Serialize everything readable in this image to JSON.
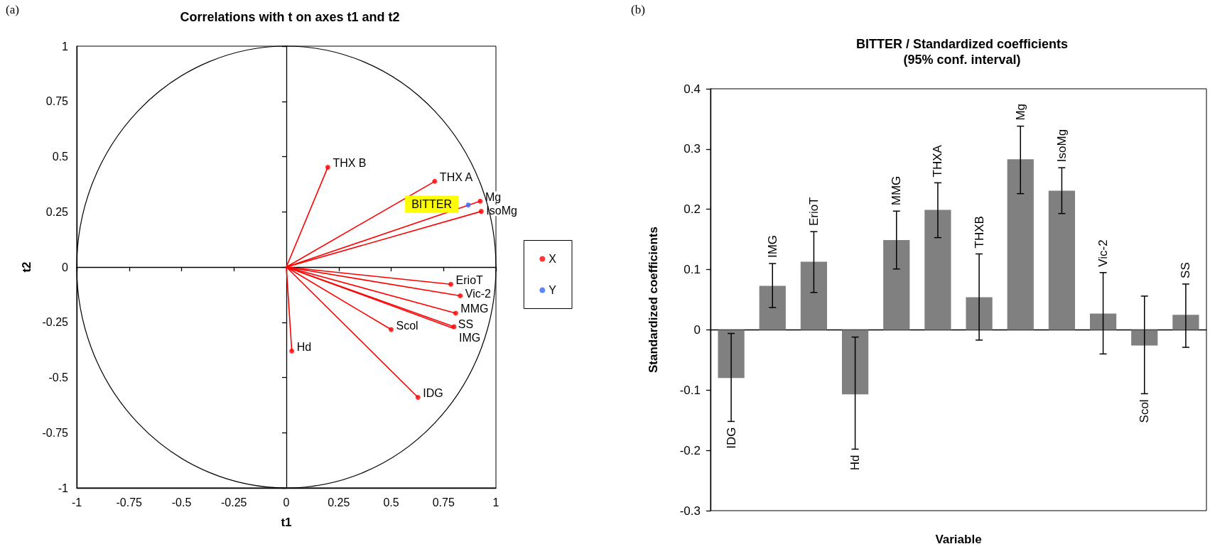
{
  "chart_data": [
    {
      "type": "scatter",
      "title": "Correlations with t on axes t1 and t2",
      "xlabel": "t1",
      "ylabel": "t2",
      "xlim": [
        -1,
        1
      ],
      "xticks": [
        -1,
        -0.75,
        -0.5,
        -0.25,
        0,
        0.25,
        0.5,
        0.75,
        1
      ],
      "ylim": [
        -1,
        1
      ],
      "yticks": [
        -1,
        -0.75,
        -0.5,
        -0.25,
        0,
        0.25,
        0.5,
        0.75,
        1
      ],
      "legend": "right",
      "series": [
        {
          "type": "line",
          "color": "#ff0000",
          "x": [
            0,
            0.198
          ],
          "values": [
            0,
            0.452
          ]
        },
        {
          "type": "line",
          "color": "#ff0000",
          "x": [
            0,
            0.708
          ],
          "values": [
            0,
            0.388
          ]
        },
        {
          "type": "line",
          "color": "#ff0000",
          "x": [
            0,
            0.925
          ],
          "values": [
            0,
            0.298
          ]
        },
        {
          "type": "line",
          "color": "#ff0000",
          "x": [
            0,
            0.93
          ],
          "values": [
            0,
            0.252
          ]
        },
        {
          "type": "line",
          "color": "#ff0000",
          "x": [
            0,
            0.785
          ],
          "values": [
            0,
            -0.078
          ]
        },
        {
          "type": "line",
          "color": "#ff0000",
          "x": [
            0,
            0.83
          ],
          "values": [
            0,
            -0.13
          ]
        },
        {
          "type": "line",
          "color": "#ff0000",
          "x": [
            0,
            0.808
          ],
          "values": [
            0,
            -0.209
          ]
        },
        {
          "type": "line",
          "color": "#ff0000",
          "x": [
            0,
            0.796
          ],
          "values": [
            0,
            -0.277
          ]
        },
        {
          "type": "line",
          "color": "#ff0000",
          "x": [
            0,
            0.8
          ],
          "values": [
            0,
            -0.27
          ]
        },
        {
          "type": "line",
          "color": "#ff0000",
          "x": [
            0,
            0.5
          ],
          "values": [
            0,
            -0.283
          ]
        },
        {
          "type": "line",
          "color": "#ff0000",
          "x": [
            0,
            0.026
          ],
          "values": [
            0,
            -0.38
          ]
        },
        {
          "type": "line",
          "color": "#ff0000",
          "x": [
            0,
            0.628
          ],
          "values": [
            0,
            -0.59
          ]
        },
        {
          "type": "scatter",
          "name": "X",
          "color": "#ff0000",
          "marker": "circle",
          "x": [
            0.198,
            0.708,
            0.925,
            0.93,
            0.785,
            0.83,
            0.808,
            0.8,
            0.5,
            0.026,
            0.628
          ],
          "values": [
            0.452,
            0.388,
            0.298,
            0.252,
            -0.078,
            -0.13,
            -0.209,
            -0.27,
            -0.283,
            -0.38,
            -0.59
          ]
        },
        {
          "type": "scatter",
          "name": "Y",
          "color": "#3366ff",
          "marker": "circle",
          "x": [
            0.868
          ],
          "values": [
            0.281
          ]
        }
      ],
      "annotations": [
        "(a)",
        {
          "text": "THX B",
          "x": 0.198,
          "y": 0.452
        },
        {
          "text": "THX A",
          "x": 0.708,
          "y": 0.388
        },
        {
          "text": "Mg",
          "x": 0.925,
          "y": 0.298
        },
        {
          "text": "BITTER",
          "x": 0.868,
          "y": 0.281
        },
        {
          "text": "IsoMg",
          "x": 0.93,
          "y": 0.252
        },
        {
          "text": "ErioT",
          "x": 0.785,
          "y": -0.078
        },
        {
          "text": "Vic-2",
          "x": 0.83,
          "y": -0.13
        },
        {
          "text": "MMG",
          "x": 0.808,
          "y": -0.209
        },
        {
          "text": "SS",
          "x": 0.796,
          "y": -0.277
        },
        {
          "text": "IMG",
          "x": 0.8,
          "y": -0.27
        },
        {
          "text": "Scol",
          "x": 0.5,
          "y": -0.283
        },
        {
          "text": "Hd",
          "x": 0.026,
          "y": -0.38
        },
        {
          "text": "IDG",
          "x": 0.628,
          "y": -0.59
        }
      ]
    },
    {
      "type": "bar",
      "title": "BITTER / Standardized coefficients",
      "subtitle": "(95% conf. interval)",
      "xlabel": "Variable",
      "ylabel": "Standardized coefficients",
      "ylim": [
        -0.3,
        0.4
      ],
      "yticks": [
        -0.3,
        -0.2,
        -0.1,
        0,
        0.1,
        0.2,
        0.3,
        0.4
      ],
      "legend": false,
      "categories": [
        "IDG",
        "IMG",
        "ErioT",
        "Hd",
        "MMG",
        "THXA",
        "THXB",
        "Mg",
        "IsoMg",
        "Vic-2",
        "Scol",
        "SS"
      ],
      "values": [
        -0.08,
        0.073,
        0.113,
        -0.107,
        0.149,
        0.199,
        0.054,
        0.283,
        0.231,
        0.027,
        -0.026,
        0.025
      ],
      "color": "#808080",
      "errors": [
        [
          -0.152,
          -0.006
        ],
        [
          0.037,
          0.11
        ],
        [
          0.062,
          0.163
        ],
        [
          -0.198,
          -0.012
        ],
        [
          0.101,
          0.197
        ],
        [
          0.153,
          0.244
        ],
        [
          -0.017,
          0.126
        ],
        [
          0.226,
          0.338
        ],
        [
          0.193,
          0.269
        ],
        [
          -0.04,
          0.095
        ],
        [
          -0.106,
          0.056
        ],
        [
          -0.029,
          0.076
        ]
      ],
      "annotations": [
        "(b)"
      ]
    }
  ]
}
